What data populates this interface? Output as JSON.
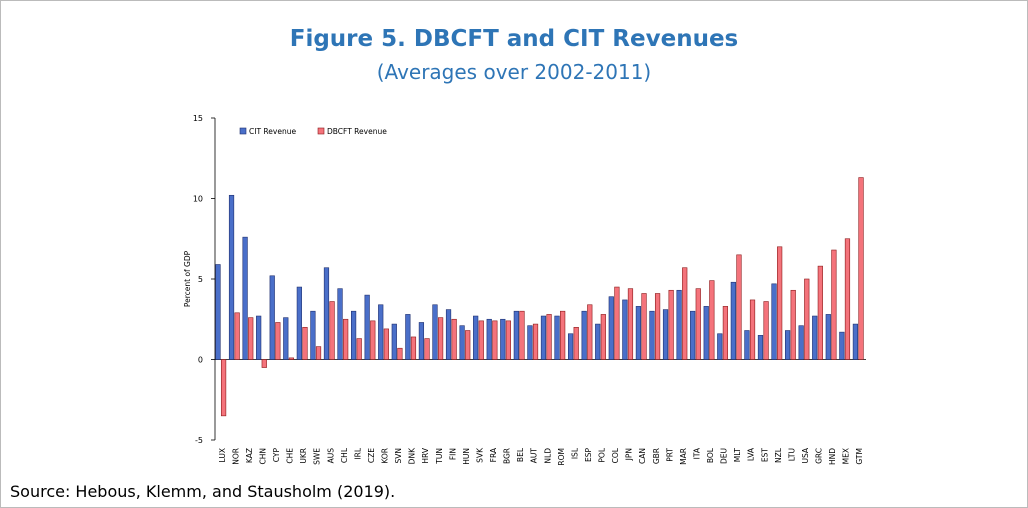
{
  "chart_data": {
    "type": "bar",
    "title": "Figure 5. DBCFT and CIT Revenues",
    "subtitle": "(Averages over 2002-2011)",
    "y_label": "Percent of GDP",
    "source": "Source: Hebous, Klemm, and Stausholm (2019).",
    "categories": [
      "LUX",
      "NOR",
      "KAZ",
      "CHN",
      "CYP",
      "CHE",
      "UKR",
      "SWE",
      "AUS",
      "CHL",
      "IRL",
      "CZE",
      "KOR",
      "SVN",
      "DNK",
      "HRV",
      "TUN",
      "FIN",
      "HUN",
      "SVK",
      "FRA",
      "BGR",
      "BEL",
      "AUT",
      "NLD",
      "ROM",
      "ISL",
      "ESP",
      "POL",
      "COL",
      "JPN",
      "CAN",
      "GBR",
      "PRT",
      "MAR",
      "ITA",
      "BOL",
      "DEU",
      "MLT",
      "LVA",
      "EST",
      "NZL",
      "LTU",
      "USA",
      "GRC",
      "HND",
      "MEX",
      "GTM"
    ],
    "series": [
      {
        "name": "CIT Revenue",
        "color": "#4a6fc9",
        "values": [
          5.9,
          10.2,
          7.6,
          2.7,
          5.2,
          2.6,
          4.5,
          3.0,
          5.7,
          4.4,
          3.0,
          4.0,
          3.4,
          2.2,
          2.8,
          2.3,
          3.4,
          3.1,
          2.1,
          2.7,
          2.5,
          2.5,
          3.0,
          2.1,
          2.7,
          2.7,
          1.6,
          3.0,
          2.2,
          3.9,
          3.7,
          3.3,
          3.0,
          3.1,
          4.3,
          3.0,
          3.3,
          1.6,
          4.8,
          1.8,
          1.5,
          4.7,
          1.8,
          2.1,
          2.7,
          2.8,
          1.7,
          2.2
        ]
      },
      {
        "name": "DBCFT Revenue",
        "color": "#f4737b",
        "values": [
          -3.5,
          2.9,
          2.6,
          -0.5,
          2.3,
          0.1,
          2.0,
          0.8,
          3.6,
          2.5,
          1.3,
          2.4,
          1.9,
          0.7,
          1.4,
          1.3,
          2.6,
          2.5,
          1.8,
          2.4,
          2.4,
          2.4,
          3.0,
          2.2,
          2.8,
          3.0,
          2.0,
          3.4,
          2.8,
          4.5,
          4.4,
          4.1,
          4.1,
          4.3,
          5.7,
          4.4,
          4.9,
          3.3,
          6.5,
          3.7,
          3.6,
          7.0,
          4.3,
          5.0,
          5.8,
          6.8,
          7.5,
          11.3
        ]
      }
    ],
    "ylim": [
      -5,
      15
    ],
    "yticks": [
      -5,
      0,
      5,
      10,
      15
    ]
  }
}
